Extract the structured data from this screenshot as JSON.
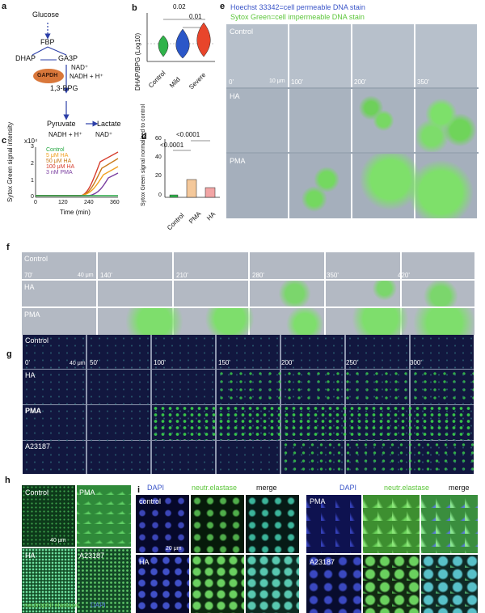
{
  "panels": {
    "a": {
      "label": "a",
      "pathway": {
        "glucose": "Glucose",
        "fbp": "FBP",
        "dhap": "DHAP",
        "ga3p": "GA3P",
        "gapdh": "GAPDH",
        "nad": "NAD⁺",
        "nadh": "NADH + H⁺",
        "bpg": "1,3-BPG",
        "pyruvate": "Pyruvate",
        "lactate": "Lactate",
        "nadh2": "NADH + H⁺",
        "nad2": "NAD⁺"
      }
    },
    "b": {
      "label": "b",
      "ylabel": "DHAP/BPG (Log10)",
      "sig_top": "0.02",
      "sig_mid": "0.01",
      "groups": [
        "Control",
        "Mild",
        "Severe"
      ],
      "colors": [
        "#2fb34a",
        "#2b57c8",
        "#e8452b"
      ]
    },
    "c": {
      "label": "c",
      "ylabel": "Sytox Green signal intensity",
      "xlabel": "Time (min)",
      "exponent": "x10⁴",
      "yticks": [
        "0",
        "1",
        "2",
        "3"
      ],
      "xticks": [
        "0",
        "120",
        "240",
        "360"
      ],
      "legend": [
        {
          "name": "Control",
          "color": "#27a843"
        },
        {
          "name": "5 μM HA",
          "color": "#f0a020"
        },
        {
          "name": "50 μM HA",
          "color": "#c87a1c"
        },
        {
          "name": "100 μM HA",
          "color": "#d63c2c"
        },
        {
          "name": "3 nM PMA",
          "color": "#7a3ea0"
        }
      ]
    },
    "d": {
      "label": "d",
      "ylabel": "Sytox Green signal normalized to control",
      "sig_top": "<0.0001",
      "sig_mid": "<0.0001",
      "yticks": [
        "0",
        "20",
        "40",
        "60"
      ],
      "groups": [
        "Control",
        "PMA",
        "HA"
      ]
    },
    "e": {
      "label": "e",
      "legend_blue": "Hoechst 33342=cell permeable DNA stain",
      "legend_green": "Sytox Green=cell impermeable DNA stain",
      "rows": [
        "Control",
        "HA",
        "PMA"
      ],
      "times": [
        "0'",
        "100'",
        "200'",
        "350'"
      ],
      "scale": "10 μm"
    },
    "f": {
      "label": "f",
      "rows": [
        "Control",
        "HA",
        "PMA"
      ],
      "times": [
        "70'",
        "140'",
        "210'",
        "280'",
        "350'",
        "420'"
      ],
      "scale": "40 μm"
    },
    "g": {
      "label": "g",
      "rows": [
        "Control",
        "HA",
        "PMA",
        "A23187"
      ],
      "times": [
        "0'",
        "50'",
        "100'",
        "150'",
        "200'",
        "250'",
        "300'"
      ],
      "scale": "40 μm"
    },
    "h": {
      "label": "h",
      "tiles": [
        "Control",
        "PMA",
        "HA",
        "A23187"
      ],
      "scale": "40 μm",
      "caption_green": "neutrophil elastase",
      "caption_blue": "DAPI"
    },
    "i": {
      "label": "i",
      "headers_left": [
        "DAPI",
        "neutr.elastase",
        "merge"
      ],
      "headers_right": [
        "DAPI",
        "neutr.elastase",
        "merge"
      ],
      "rows_left": [
        "control",
        "HA"
      ],
      "rows_right": [
        "PMA",
        "A23187"
      ],
      "scale": "20 μm"
    }
  }
}
